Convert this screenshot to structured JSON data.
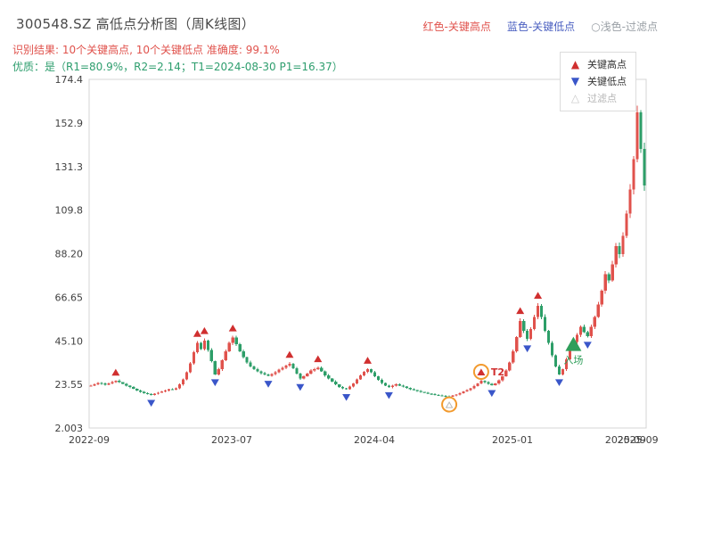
{
  "header": {
    "title": "300548.SZ 高低点分析图（周K线图）",
    "legend": [
      {
        "text": "红色-关键高点",
        "color": "#e0524c"
      },
      {
        "text": "蓝色-关键低点",
        "color": "#4a5fc0"
      },
      {
        "text": "○浅色-过滤点",
        "color": "#9aa0a6"
      }
    ],
    "result_line": "识别结果: 10个关键高点, 10个关键低点  准确度: 99.1%",
    "result_color": "#e0524c",
    "quality_line": "优质：是（R1=80.9%，R2=2.14；T1=2024-08-30 P1=16.37）",
    "quality_color": "#2e9e6e"
  },
  "legend_box": {
    "items": [
      {
        "label": "关键高点",
        "glyph": "▲",
        "glyph_color": "#d02f2f",
        "text_color": "#333333"
      },
      {
        "label": "关键低点",
        "glyph": "▼",
        "glyph_color": "#3a56c9",
        "text_color": "#333333"
      },
      {
        "label": "过滤点",
        "glyph": "△",
        "glyph_color": "#c9c9c9",
        "text_color": "#b5b5b5"
      }
    ]
  },
  "chart_data": {
    "type": "candlestick",
    "title": "300548.SZ 高低点分析图（周K线图）",
    "xlabel": "",
    "ylabel": "",
    "grid": false,
    "legend_position": "top-right",
    "y_range": [
      2.003,
      174.4
    ],
    "y_ticks": [
      "174.4",
      "152.9",
      "131.3",
      "109.8",
      "88.20",
      "66.65",
      "45.10",
      "23.55",
      "2.003"
    ],
    "x_tick_labels": [
      {
        "label": "2022-09",
        "pos": 0.0
      },
      {
        "label": "2023-07",
        "pos": 0.256
      },
      {
        "label": "2024-04",
        "pos": 0.512
      },
      {
        "label": "2025-01",
        "pos": 0.76
      },
      {
        "label": "2025-09",
        "pos": 0.963
      },
      {
        "label": "2025-09",
        "pos": 0.985
      }
    ],
    "weekly_closes": [
      23.0,
      23.6,
      24.3,
      24.0,
      23.4,
      24.1,
      24.8,
      25.4,
      24.6,
      23.8,
      23.0,
      22.2,
      21.4,
      20.6,
      19.9,
      19.3,
      18.8,
      18.4,
      18.9,
      19.5,
      20.1,
      20.6,
      21.2,
      21.0,
      21.7,
      23.5,
      26.0,
      29.5,
      34.0,
      39.5,
      44.0,
      41.0,
      45.3,
      40.5,
      35.0,
      28.5,
      31.0,
      35.5,
      40.0,
      44.0,
      46.8,
      43.5,
      40.0,
      37.0,
      34.5,
      32.5,
      31.0,
      30.0,
      29.2,
      28.4,
      27.8,
      28.6,
      29.6,
      30.8,
      31.8,
      32.9,
      33.8,
      31.5,
      29.0,
      26.5,
      27.5,
      29.0,
      30.5,
      31.2,
      31.8,
      30.0,
      28.0,
      26.5,
      25.0,
      23.5,
      22.3,
      21.6,
      21.2,
      22.5,
      24.0,
      26.0,
      28.0,
      29.8,
      31.0,
      29.5,
      27.5,
      25.8,
      24.2,
      23.0,
      22.2,
      23.0,
      23.6,
      23.0,
      22.4,
      21.8,
      21.2,
      20.7,
      20.2,
      19.8,
      19.4,
      19.0,
      18.7,
      18.4,
      18.1,
      17.9,
      17.7,
      17.5,
      18.0,
      18.6,
      19.3,
      20.0,
      20.8,
      21.7,
      22.8,
      24.0,
      25.3,
      24.6,
      23.8,
      23.2,
      24.0,
      25.5,
      27.5,
      30.5,
      34.5,
      40.0,
      47.0,
      55.0,
      50.0,
      46.0,
      51.0,
      57.0,
      62.5,
      57.0,
      50.0,
      44.0,
      38.0,
      32.5,
      28.5,
      31.0,
      36.0,
      41.0,
      44.5,
      48.0,
      52.0,
      49.5,
      47.5,
      52.0,
      57.0,
      63.0,
      70.0,
      78.0,
      75.0,
      83.0,
      92.0,
      88.0,
      97.0,
      108.0,
      120.0,
      135.0,
      158.0,
      140.0,
      122.0
    ],
    "key_high_indices": [
      7,
      30,
      32,
      40,
      56,
      64,
      78,
      110,
      121,
      126
    ],
    "key_low_indices": [
      17,
      35,
      50,
      59,
      72,
      84,
      113,
      123,
      132,
      140
    ],
    "filtered_point": {
      "index": 101,
      "price": 16.37
    },
    "t2": {
      "index": 110,
      "label": "T2"
    },
    "entry": {
      "index": 136,
      "label": "入场"
    },
    "colors": {
      "up": "#e0524c",
      "down": "#2d9e68",
      "key_high": "#d02f2f",
      "key_low": "#3a56c9",
      "filtered": "#b9b9b9",
      "entry": "#2f9e5a",
      "highlight": "#f29a2e",
      "axis_text": "#404040",
      "border": "#d4d4d4"
    }
  }
}
